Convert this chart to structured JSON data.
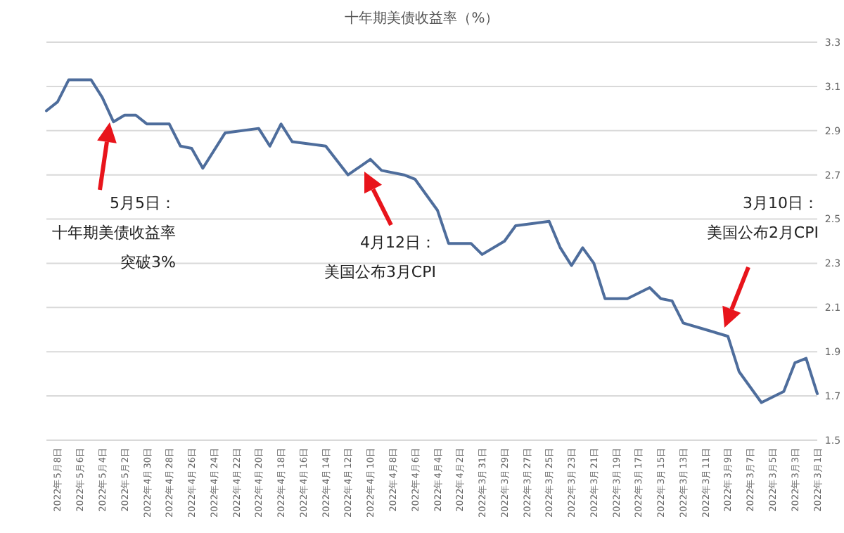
{
  "chart_data": {
    "type": "line",
    "title": "十年期美债收益率（%）",
    "x": [
      "2022-03-01",
      "2022-03-02",
      "2022-03-03",
      "2022-03-04",
      "2022-03-06",
      "2022-03-08",
      "2022-03-09",
      "2022-03-11",
      "2022-03-13",
      "2022-03-14",
      "2022-03-15",
      "2022-03-16",
      "2022-03-18",
      "2022-03-20",
      "2022-03-21",
      "2022-03-22",
      "2022-03-23",
      "2022-03-24",
      "2022-03-25",
      "2022-03-28",
      "2022-03-29",
      "2022-03-31",
      "2022-04-01",
      "2022-04-03",
      "2022-04-04",
      "2022-04-06",
      "2022-04-07",
      "2022-04-09",
      "2022-04-10",
      "2022-04-12",
      "2022-04-14",
      "2022-04-17",
      "2022-04-18",
      "2022-04-19",
      "2022-04-20",
      "2022-04-23",
      "2022-04-25",
      "2022-04-26",
      "2022-04-27",
      "2022-04-28",
      "2022-04-30",
      "2022-05-01",
      "2022-05-02",
      "2022-05-03",
      "2022-05-04",
      "2022-05-05",
      "2022-05-07",
      "2022-05-08",
      "2022-05-09"
    ],
    "series": [
      {
        "color": "#4e6d9c",
        "values": [
          1.71,
          1.87,
          1.85,
          1.72,
          1.67,
          1.81,
          1.97,
          2.0,
          2.03,
          2.13,
          2.14,
          2.19,
          2.14,
          2.14,
          2.3,
          2.37,
          2.29,
          2.37,
          2.49,
          2.47,
          2.4,
          2.34,
          2.39,
          2.39,
          2.54,
          2.68,
          2.7,
          2.72,
          2.77,
          2.7,
          2.83,
          2.85,
          2.93,
          2.83,
          2.91,
          2.89,
          2.73,
          2.82,
          2.83,
          2.93,
          2.93,
          2.97,
          2.97,
          2.94,
          3.05,
          3.13,
          3.13,
          3.03,
          2.99
        ]
      }
    ],
    "xlim": [
      "2022-05-09",
      "2022-03-01"
    ],
    "xticks": [
      {
        "value": "2022-03-01",
        "label": "2022年3月1日"
      },
      {
        "value": "2022-03-03",
        "label": "2022年3月3日"
      },
      {
        "value": "2022-03-05",
        "label": "2022年3月5日"
      },
      {
        "value": "2022-03-07",
        "label": "2022年3月7日"
      },
      {
        "value": "2022-03-09",
        "label": "2022年3月9日"
      },
      {
        "value": "2022-03-11",
        "label": "2022年3月11日"
      },
      {
        "value": "2022-03-13",
        "label": "2022年3月13日"
      },
      {
        "value": "2022-03-15",
        "label": "2022年3月15日"
      },
      {
        "value": "2022-03-17",
        "label": "2022年3月17日"
      },
      {
        "value": "2022-03-19",
        "label": "2022年3月19日"
      },
      {
        "value": "2022-03-21",
        "label": "2022年3月21日"
      },
      {
        "value": "2022-03-23",
        "label": "2022年3月23日"
      },
      {
        "value": "2022-03-25",
        "label": "2022年3月25日"
      },
      {
        "value": "2022-03-27",
        "label": "2022年3月27日"
      },
      {
        "value": "2022-03-29",
        "label": "2022年3月29日"
      },
      {
        "value": "2022-03-31",
        "label": "2022年3月31日"
      },
      {
        "value": "2022-04-02",
        "label": "2022年4月2日"
      },
      {
        "value": "2022-04-04",
        "label": "2022年4月4日"
      },
      {
        "value": "2022-04-06",
        "label": "2022年4月6日"
      },
      {
        "value": "2022-04-08",
        "label": "2022年4月8日"
      },
      {
        "value": "2022-04-10",
        "label": "2022年4月10日"
      },
      {
        "value": "2022-04-12",
        "label": "2022年4月12日"
      },
      {
        "value": "2022-04-14",
        "label": "2022年4月14日"
      },
      {
        "value": "2022-04-16",
        "label": "2022年4月16日"
      },
      {
        "value": "2022-04-18",
        "label": "2022年4月18日"
      },
      {
        "value": "2022-04-20",
        "label": "2022年4月20日"
      },
      {
        "value": "2022-04-22",
        "label": "2022年4月22日"
      },
      {
        "value": "2022-04-24",
        "label": "2022年4月24日"
      },
      {
        "value": "2022-04-26",
        "label": "2022年4月26日"
      },
      {
        "value": "2022-04-28",
        "label": "2022年4月28日"
      },
      {
        "value": "2022-04-30",
        "label": "2022年4月30日"
      },
      {
        "value": "2022-05-02",
        "label": "2022年5月2日"
      },
      {
        "value": "2022-05-04",
        "label": "2022年5月4日"
      },
      {
        "value": "2022-05-06",
        "label": "2022年5月6日"
      },
      {
        "value": "2022-05-08",
        "label": "2022年5月8日"
      }
    ],
    "ylim": [
      1.5,
      3.3
    ],
    "yticks": [
      1.5,
      1.7,
      1.9,
      2.1,
      2.3,
      2.5,
      2.7,
      2.9,
      3.1,
      3.3
    ],
    "grid": "y",
    "annotations": [
      "5月5日：十年期美债收益率突破3%",
      "4月12日：美国公布3月CPI",
      "3月10日：美国公布2月CPI"
    ]
  }
}
